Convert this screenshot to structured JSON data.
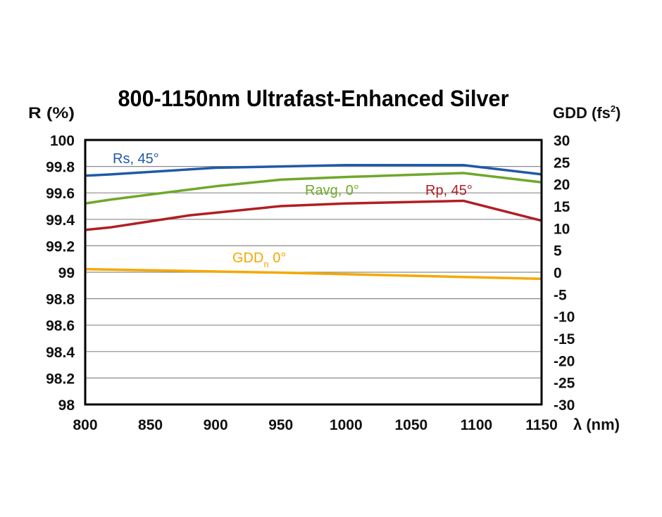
{
  "chart_data": {
    "type": "line",
    "title": "800-1150nm Ultrafast-Enhanced Silver",
    "ylabel": "R (%)",
    "y2label": "GDD (fs",
    "y2label_sup": "2",
    "y2label_end": ")",
    "xlabel": "λ (nm)",
    "xlim": [
      800,
      1150
    ],
    "ylim": [
      98,
      100
    ],
    "y2lim": [
      -30,
      30
    ],
    "grid": true,
    "xticks": [
      "800",
      "850",
      "900",
      "950",
      "1000",
      "1050",
      "1100",
      "1150"
    ],
    "yticks": [
      "98",
      "98.2",
      "98.4",
      "98.6",
      "98.8",
      "99",
      "99.2",
      "99.4",
      "99.6",
      "99.8",
      "100"
    ],
    "y2ticks": [
      "-30",
      "-25",
      "-20",
      "-15",
      "-10",
      "-5",
      "0",
      "5",
      "10",
      "15",
      "20",
      "25",
      "30"
    ],
    "series": [
      {
        "name": "Rs, 45°",
        "axis": "left",
        "color": "#1f5aa6",
        "x": [
          800,
          820,
          900,
          1000,
          1090,
          1150
        ],
        "y": [
          99.73,
          99.74,
          99.79,
          99.81,
          99.81,
          99.74
        ]
      },
      {
        "name": "Ravg, 0°",
        "axis": "left",
        "color": "#6fa82a",
        "x": [
          800,
          820,
          900,
          950,
          1000,
          1090,
          1150
        ],
        "y": [
          99.52,
          99.55,
          99.65,
          99.7,
          99.72,
          99.75,
          99.68
        ]
      },
      {
        "name": "Rp, 45°",
        "axis": "left",
        "color": "#b01f24",
        "x": [
          800,
          820,
          880,
          950,
          1000,
          1090,
          1150
        ],
        "y": [
          99.32,
          99.34,
          99.43,
          99.5,
          99.52,
          99.54,
          99.39
        ]
      },
      {
        "name": "GDD",
        "name_sub": "n",
        "name_end": " 0°",
        "axis": "right",
        "color": "#f5a800",
        "x": [
          800,
          950,
          1050,
          1150
        ],
        "y": [
          0.7,
          -0.1,
          -0.8,
          -1.5
        ]
      }
    ]
  }
}
